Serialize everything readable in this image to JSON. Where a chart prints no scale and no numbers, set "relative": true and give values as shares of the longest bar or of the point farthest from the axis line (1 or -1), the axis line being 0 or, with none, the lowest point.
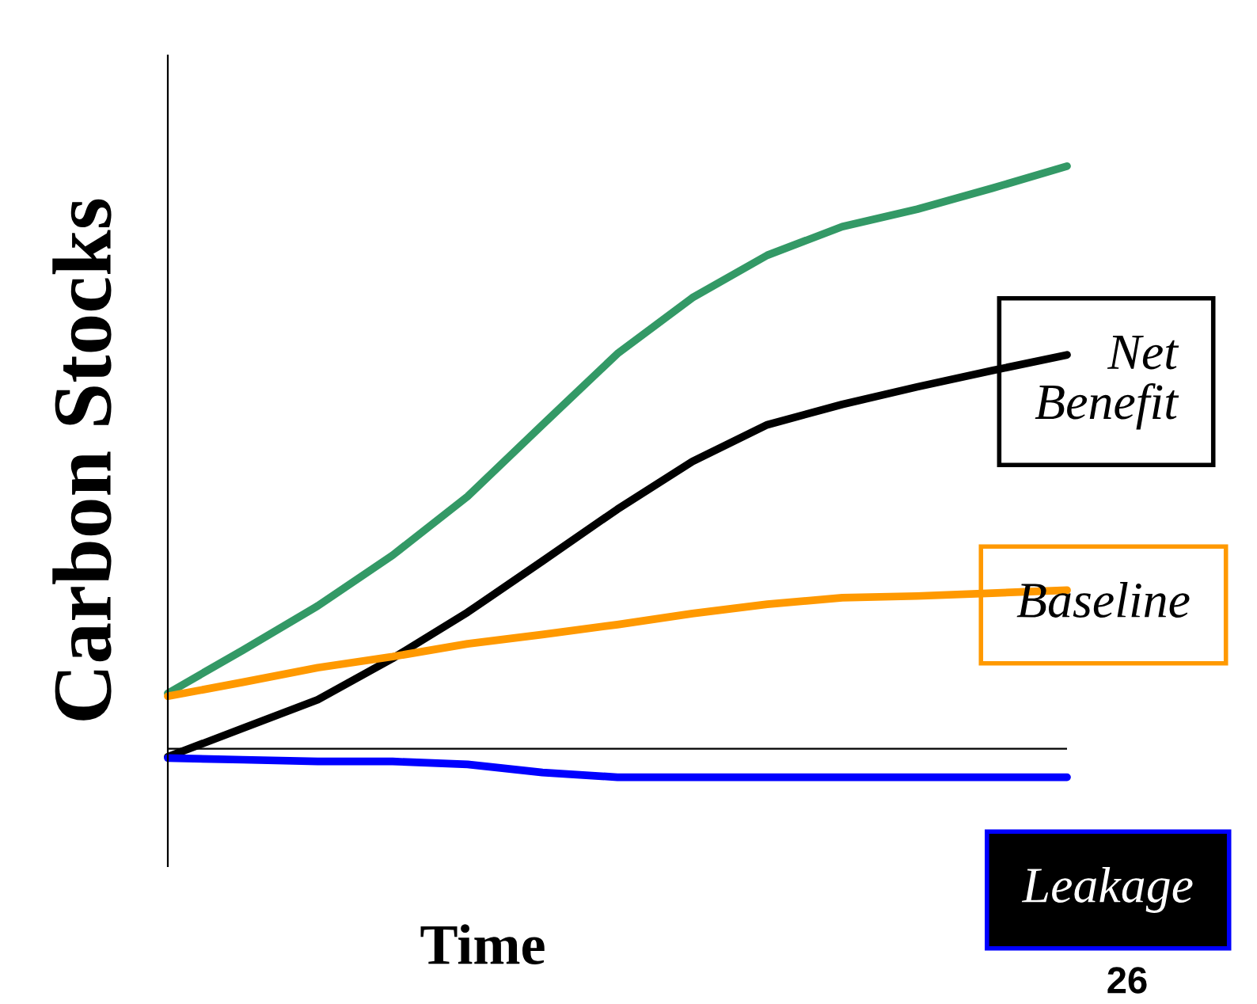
{
  "chart_data": {
    "type": "line",
    "relative": true,
    "ylabel": "Carbon Stocks",
    "xlabel": "Time",
    "categories": [
      null,
      null,
      null,
      null,
      null,
      null,
      null,
      null,
      null,
      null,
      null,
      null,
      null
    ],
    "series": [
      {
        "color": "#339966",
        "values": [
          0.095,
          0.169,
          0.245,
          0.332,
          0.433,
          0.556,
          0.678,
          0.774,
          0.847,
          0.896,
          0.926,
          0.962,
          1.0
        ]
      },
      {
        "name": "Net\nBenefit",
        "color": "#000000",
        "values": [
          -0.014,
          0.035,
          0.084,
          0.155,
          0.234,
          0.322,
          0.411,
          0.493,
          0.556,
          0.591,
          0.621,
          0.649,
          0.676
        ]
      },
      {
        "name": "Baseline",
        "color": "#ff9900",
        "values": [
          0.09,
          0.114,
          0.139,
          0.158,
          0.18,
          0.196,
          0.213,
          0.232,
          0.248,
          0.259,
          0.262,
          0.267,
          0.272
        ]
      },
      {
        "name": "Leakage",
        "color": "#0000ff",
        "values": [
          -0.016,
          -0.019,
          -0.022,
          -0.022,
          -0.027,
          -0.041,
          -0.049,
          -0.049,
          -0.049,
          -0.049,
          -0.049,
          -0.049,
          -0.049
        ]
      }
    ],
    "annotations": [
      "26"
    ],
    "grid": false,
    "legend": false,
    "marker": "none",
    "line_style": "solid"
  }
}
